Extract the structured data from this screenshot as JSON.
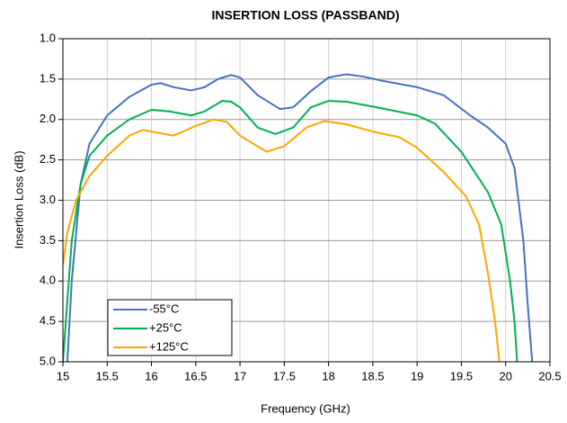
{
  "chart_data": {
    "type": "line",
    "title": "INSERTION LOSS (PASSBAND)",
    "x_label": "Frequency (GHz)",
    "y_label": "Insertion Loss (dB)",
    "xlim": [
      15,
      20.5
    ],
    "xticks": [
      15,
      15.5,
      16,
      16.5,
      17,
      17.5,
      18,
      18.5,
      19,
      19.5,
      20,
      20.5
    ],
    "ylim": [
      1.0,
      5.0
    ],
    "y_inverted": true,
    "yticks": [
      {
        "value": 1.0,
        "label": "1.0"
      },
      1.5,
      {
        "value": 2.0,
        "label": "2.0"
      },
      2.5,
      {
        "value": 3.0,
        "label": "3.0"
      },
      3.5,
      {
        "value": 4.0,
        "label": "4.0"
      },
      4.5,
      {
        "value": 5.0,
        "label": "5.0"
      }
    ],
    "grid": true,
    "legend": "lower left",
    "series": [
      {
        "name": "-55°C",
        "color": "#4472c4",
        "x": [
          15.05,
          15.1,
          15.2,
          15.3,
          15.5,
          15.75,
          16.0,
          16.1,
          16.25,
          16.45,
          16.6,
          16.75,
          16.9,
          17.0,
          17.2,
          17.45,
          17.6,
          17.8,
          18.0,
          18.2,
          18.4,
          18.6,
          19.0,
          19.3,
          19.6,
          19.8,
          20.0,
          20.1,
          20.2,
          20.25,
          20.3
        ],
        "values": [
          5.0,
          4.0,
          2.8,
          2.3,
          1.95,
          1.72,
          1.57,
          1.55,
          1.6,
          1.64,
          1.6,
          1.5,
          1.45,
          1.48,
          1.7,
          1.87,
          1.85,
          1.65,
          1.48,
          1.44,
          1.47,
          1.52,
          1.6,
          1.7,
          1.95,
          2.1,
          2.3,
          2.6,
          3.5,
          4.3,
          5.0
        ]
      },
      {
        "name": "+25°C",
        "color": "#00b050",
        "x": [
          15.0,
          15.1,
          15.2,
          15.3,
          15.5,
          15.75,
          16.0,
          16.2,
          16.45,
          16.6,
          16.8,
          16.9,
          17.0,
          17.2,
          17.4,
          17.6,
          17.8,
          18.0,
          18.2,
          18.5,
          19.0,
          19.2,
          19.5,
          19.8,
          19.95,
          20.05,
          20.1,
          20.13
        ],
        "values": [
          5.0,
          3.5,
          2.8,
          2.45,
          2.2,
          2.0,
          1.88,
          1.9,
          1.95,
          1.9,
          1.77,
          1.78,
          1.85,
          2.1,
          2.18,
          2.1,
          1.85,
          1.77,
          1.78,
          1.84,
          1.95,
          2.05,
          2.4,
          2.9,
          3.3,
          4.0,
          4.5,
          5.0
        ]
      },
      {
        "name": "+125°C",
        "color": "#ffa500",
        "x": [
          15.0,
          15.05,
          15.15,
          15.3,
          15.5,
          15.75,
          15.9,
          16.0,
          16.25,
          16.5,
          16.7,
          16.85,
          17.0,
          17.3,
          17.5,
          17.75,
          17.95,
          18.2,
          18.5,
          18.8,
          19.0,
          19.3,
          19.55,
          19.7,
          19.8,
          19.88,
          19.93
        ],
        "values": [
          3.8,
          3.4,
          3.0,
          2.7,
          2.45,
          2.2,
          2.13,
          2.15,
          2.2,
          2.08,
          2.0,
          2.03,
          2.2,
          2.4,
          2.33,
          2.1,
          2.02,
          2.06,
          2.15,
          2.22,
          2.35,
          2.65,
          2.95,
          3.3,
          3.9,
          4.5,
          5.0
        ]
      }
    ]
  }
}
